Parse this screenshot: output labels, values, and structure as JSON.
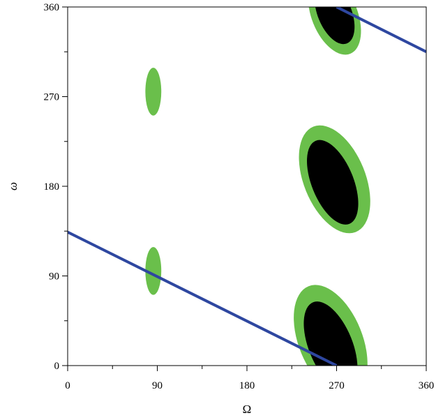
{
  "chart_data": {
    "type": "scatter",
    "xlabel": "Ω",
    "ylabel": "ω",
    "xlim": [
      0,
      360
    ],
    "ylim": [
      0,
      360
    ],
    "x_ticks": [
      0,
      90,
      180,
      270,
      360
    ],
    "y_ticks": [
      0,
      90,
      180,
      270,
      360
    ],
    "minor_ticks_every": 45,
    "grid": false,
    "colors": {
      "outer_region": "#6abf4b",
      "inner_region": "#000000",
      "line": "#2e47a0",
      "axis": "#000000"
    },
    "regions": [
      {
        "kind": "outer",
        "cx": 86,
        "cy": 275,
        "rx": 8,
        "ry": 24
      },
      {
        "kind": "outer",
        "cx": 86,
        "cy": 95,
        "rx": 8,
        "ry": 24
      },
      {
        "kind": "outer",
        "cx": 268,
        "cy": 352,
        "rx": 23,
        "ry": 42,
        "rot": -22
      },
      {
        "kind": "inner",
        "cx": 268,
        "cy": 354,
        "rx": 17,
        "ry": 33,
        "rot": -22
      },
      {
        "kind": "outer",
        "cx": 268,
        "cy": 187,
        "rx": 31,
        "ry": 57,
        "rot": -22
      },
      {
        "kind": "inner",
        "cx": 266,
        "cy": 184,
        "rx": 21,
        "ry": 45,
        "rot": -22
      },
      {
        "kind": "outer",
        "cx": 264,
        "cy": 25,
        "rx": 32,
        "ry": 59,
        "rot": -22
      },
      {
        "kind": "inner",
        "cx": 264,
        "cy": 20,
        "rx": 22,
        "ry": 47,
        "rot": -22
      }
    ],
    "lines": [
      {
        "points": [
          [
            0,
            134
          ],
          [
            270,
            0
          ]
        ]
      },
      {
        "points": [
          [
            270,
            360
          ],
          [
            360,
            315
          ]
        ]
      }
    ]
  }
}
